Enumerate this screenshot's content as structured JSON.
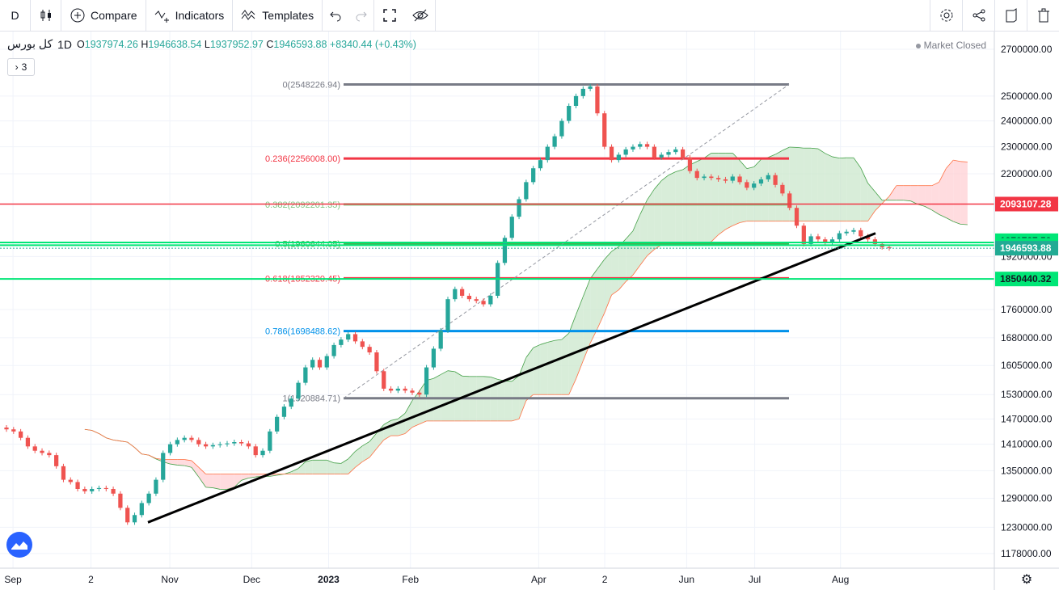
{
  "toolbar": {
    "interval": "D",
    "compare": "Compare",
    "indicators": "Indicators",
    "templates": "Templates"
  },
  "legend": {
    "symbol": "کل بورس",
    "interval": "1D",
    "o_label": "O",
    "o": "1937974.26",
    "h_label": "H",
    "h": "1946638.54",
    "l_label": "L",
    "l": "1937952.97",
    "c_label": "C",
    "c": "1946593.88",
    "change": "+8340.44 (+0.43%)",
    "indicators_count": "3",
    "market_status": "Market Closed"
  },
  "colors": {
    "up": "#26a69a",
    "down": "#ef5350",
    "kumo_bull": "#c8e6c9",
    "kumo_bear": "#ffcdd2",
    "accent": "#2962ff"
  },
  "chart_data": {
    "type": "candlestick",
    "y_scale": "log",
    "ylim": [
      1150000,
      2780000
    ],
    "y_ticks": [
      2700000,
      2500000,
      2400000,
      2300000,
      2200000,
      1920000,
      1760000,
      1680000,
      1605000,
      1530000,
      1470000,
      1410000,
      1350000,
      1290000,
      1230000,
      1178000
    ],
    "x_ticks": [
      "Sep",
      "2",
      "Nov",
      "Dec",
      "2023",
      "Feb",
      "Apr",
      "2",
      "Jun",
      "Jul",
      "Aug"
    ],
    "price_labels": [
      {
        "value": "2093107.28",
        "color": "#f23645"
      },
      {
        "value": "1970727.59",
        "color": "#00e676"
      },
      {
        "value": "1956269.09",
        "color": "#00e676"
      },
      {
        "value": "1946593.88",
        "color": "#22ab94"
      },
      {
        "value": "1850440.32",
        "color": "#00e676"
      }
    ],
    "fib_levels": [
      {
        "label": "0(2548226.94)",
        "value": 2548226.94,
        "color": "#787b86"
      },
      {
        "label": "0.236(2256008.00)",
        "value": 2256008.0,
        "color": "#f23645"
      },
      {
        "label": "0.382(2092201.35)",
        "value": 2092201.35,
        "color": "#81c784"
      },
      {
        "label": "0.5(1960644.05)",
        "value": 1960644.05,
        "color": "#4caf50"
      },
      {
        "label": "0.618(1852320.45)",
        "value": 1852320.45,
        "color": "#f23645"
      },
      {
        "label": "0.786(1698488.62)",
        "value": 1698488.62,
        "color": "#0091ea"
      },
      {
        "label": "1(1520884.71)",
        "value": 1520884.71,
        "color": "#787b86"
      }
    ],
    "close_series": [
      1445000,
      1440000,
      1425000,
      1405000,
      1395000,
      1390000,
      1385000,
      1360000,
      1330000,
      1325000,
      1310000,
      1305000,
      1310000,
      1312000,
      1310000,
      1300000,
      1270000,
      1240000,
      1255000,
      1280000,
      1300000,
      1330000,
      1390000,
      1410000,
      1420000,
      1425000,
      1420000,
      1410000,
      1405000,
      1408000,
      1410000,
      1412000,
      1415000,
      1412000,
      1405000,
      1385000,
      1395000,
      1440000,
      1475000,
      1500000,
      1520000,
      1560000,
      1600000,
      1620000,
      1600000,
      1630000,
      1660000,
      1675000,
      1690000,
      1670000,
      1655000,
      1640000,
      1590000,
      1545000,
      1540000,
      1545000,
      1540000,
      1535000,
      1530000,
      1600000,
      1650000,
      1700000,
      1790000,
      1820000,
      1800000,
      1790000,
      1785000,
      1775000,
      1800000,
      1900000,
      1980000,
      2050000,
      2110000,
      2170000,
      2220000,
      2250000,
      2300000,
      2340000,
      2400000,
      2460000,
      2500000,
      2530000,
      2540000,
      2430000,
      2300000,
      2250000,
      2270000,
      2290000,
      2300000,
      2310000,
      2300000,
      2260000,
      2270000,
      2280000,
      2290000,
      2260000,
      2210000,
      2185000,
      2190000,
      2185000,
      2180000,
      2175000,
      2190000,
      2170000,
      2150000,
      2165000,
      2180000,
      2195000,
      2160000,
      2130000,
      2080000,
      2020000,
      1960000,
      1985000,
      1975000,
      1965000,
      1975000,
      1995000,
      2000000,
      2005000,
      1985000,
      1975000,
      1960000,
      1950000,
      1946593.88
    ]
  }
}
